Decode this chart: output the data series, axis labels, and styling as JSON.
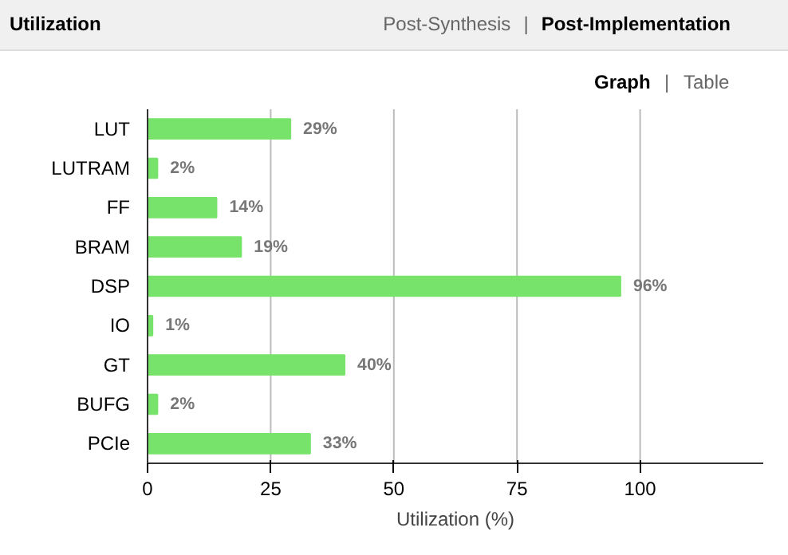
{
  "chart_data": {
    "type": "bar",
    "orientation": "horizontal",
    "title": "Utilization",
    "xlabel": "Utilization (%)",
    "annotations": [
      "Post-Synthesis",
      "|",
      "Post-Implementation",
      "Graph",
      "|",
      "Table"
    ],
    "categories": [
      "LUT",
      "LUTRAM",
      "FF",
      "BRAM",
      "DSP",
      "IO",
      "GT",
      "BUFG",
      "PCIe"
    ],
    "values": [
      29,
      2,
      14,
      19,
      96,
      1,
      40,
      2,
      33
    ],
    "value_labels": [
      "29%",
      "2%",
      "14%",
      "19%",
      "96%",
      "1%",
      "40%",
      "2%",
      "33%"
    ],
    "color": "#77e36a",
    "xlim": [
      0,
      125
    ],
    "xticks": [
      0,
      25,
      50,
      75,
      100
    ],
    "grid": "x"
  }
}
